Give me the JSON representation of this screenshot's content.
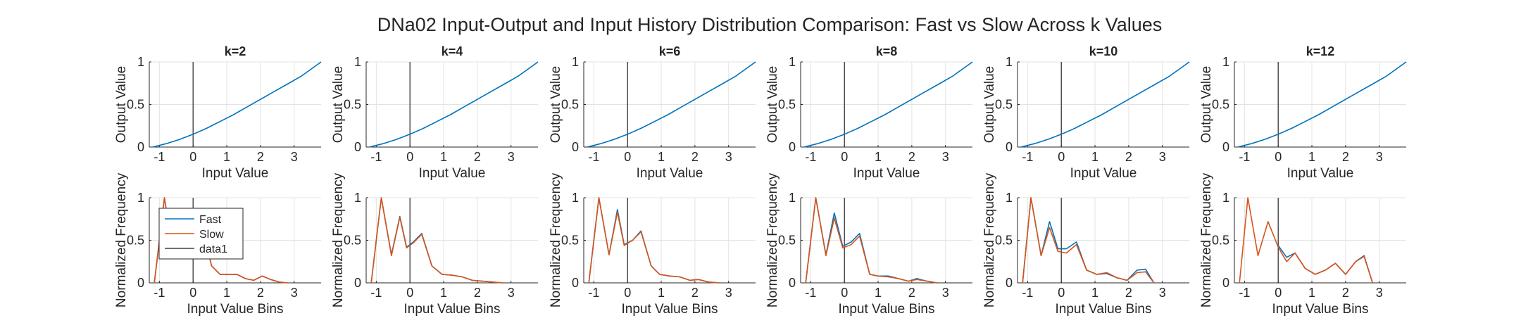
{
  "figure": {
    "title": "DNa02 Input-Output and Input History Distribution Comparison: Fast vs Slow Across k Values"
  },
  "colors": {
    "fast": "#0072BD",
    "slow": "#D95319",
    "data1": "#404040",
    "axis": "#262626",
    "grid": "#e3e3e3",
    "zero_line": "#262626"
  },
  "legend": {
    "entries": [
      "Fast",
      "Slow",
      "data1"
    ],
    "location": "northwest",
    "panel": 0
  },
  "chart_data": [
    {
      "type": "line",
      "title": "k=2",
      "xlabel": "Input Value",
      "ylabel": "Output Value",
      "xlim": [
        -1.3,
        3.8
      ],
      "ylim": [
        0,
        1
      ],
      "xticks": [
        -1,
        0,
        1,
        2,
        3
      ],
      "xtick_labels": [
        "-1",
        "0",
        "1",
        "2",
        "3"
      ],
      "yticks": [
        0,
        0.5,
        1
      ],
      "ytick_labels": [
        "0",
        "0.5",
        "1"
      ],
      "grid": true,
      "vline_x": 0,
      "series": [
        {
          "key": "fast",
          "x": [
            -1.2,
            -0.8,
            -0.4,
            0,
            0.4,
            0.8,
            1.2,
            1.6,
            2.0,
            2.4,
            2.8,
            3.2,
            3.8
          ],
          "values": [
            0.0,
            0.04,
            0.09,
            0.15,
            0.22,
            0.3,
            0.38,
            0.47,
            0.56,
            0.65,
            0.74,
            0.83,
            1.0
          ]
        }
      ]
    },
    {
      "type": "line",
      "title": "k=4",
      "xlabel": "Input Value",
      "ylabel": "Output Value",
      "xlim": [
        -1.3,
        3.8
      ],
      "ylim": [
        0,
        1
      ],
      "xticks": [
        -1,
        0,
        1,
        2,
        3
      ],
      "xtick_labels": [
        "-1",
        "0",
        "1",
        "2",
        "3"
      ],
      "yticks": [
        0,
        0.5,
        1
      ],
      "ytick_labels": [
        "0",
        "0.5",
        "1"
      ],
      "grid": true,
      "vline_x": 0,
      "series": [
        {
          "key": "fast",
          "x": [
            -1.2,
            -0.8,
            -0.4,
            0,
            0.4,
            0.8,
            1.2,
            1.6,
            2.0,
            2.4,
            2.8,
            3.2,
            3.8
          ],
          "values": [
            0.0,
            0.04,
            0.09,
            0.15,
            0.22,
            0.3,
            0.38,
            0.47,
            0.56,
            0.65,
            0.74,
            0.83,
            1.0
          ]
        }
      ]
    },
    {
      "type": "line",
      "title": "k=6",
      "xlabel": "Input Value",
      "ylabel": "Output Value",
      "xlim": [
        -1.3,
        3.8
      ],
      "ylim": [
        0,
        1
      ],
      "xticks": [
        -1,
        0,
        1,
        2,
        3
      ],
      "xtick_labels": [
        "-1",
        "0",
        "1",
        "2",
        "3"
      ],
      "yticks": [
        0,
        0.5,
        1
      ],
      "ytick_labels": [
        "0",
        "0.5",
        "1"
      ],
      "grid": true,
      "vline_x": 0,
      "series": [
        {
          "key": "fast",
          "x": [
            -1.2,
            -0.8,
            -0.4,
            0,
            0.4,
            0.8,
            1.2,
            1.6,
            2.0,
            2.4,
            2.8,
            3.2,
            3.8
          ],
          "values": [
            0.0,
            0.04,
            0.09,
            0.15,
            0.22,
            0.3,
            0.38,
            0.47,
            0.56,
            0.65,
            0.74,
            0.83,
            1.0
          ]
        }
      ]
    },
    {
      "type": "line",
      "title": "k=8",
      "xlabel": "Input Value",
      "ylabel": "Output Value",
      "xlim": [
        -1.3,
        3.8
      ],
      "ylim": [
        0,
        1
      ],
      "xticks": [
        -1,
        0,
        1,
        2,
        3
      ],
      "xtick_labels": [
        "-1",
        "0",
        "1",
        "2",
        "3"
      ],
      "yticks": [
        0,
        0.5,
        1
      ],
      "ytick_labels": [
        "0",
        "0.5",
        "1"
      ],
      "grid": true,
      "vline_x": 0,
      "series": [
        {
          "key": "fast",
          "x": [
            -1.2,
            -0.8,
            -0.4,
            0,
            0.4,
            0.8,
            1.2,
            1.6,
            2.0,
            2.4,
            2.8,
            3.2,
            3.8
          ],
          "values": [
            0.0,
            0.04,
            0.09,
            0.15,
            0.22,
            0.3,
            0.38,
            0.47,
            0.56,
            0.65,
            0.74,
            0.83,
            1.0
          ]
        }
      ]
    },
    {
      "type": "line",
      "title": "k=10",
      "xlabel": "Input Value",
      "ylabel": "Output Value",
      "xlim": [
        -1.3,
        3.8
      ],
      "ylim": [
        0,
        1
      ],
      "xticks": [
        -1,
        0,
        1,
        2,
        3
      ],
      "xtick_labels": [
        "-1",
        "0",
        "1",
        "2",
        "3"
      ],
      "yticks": [
        0,
        0.5,
        1
      ],
      "ytick_labels": [
        "0",
        "0.5",
        "1"
      ],
      "grid": true,
      "vline_x": 0,
      "series": [
        {
          "key": "fast",
          "x": [
            -1.2,
            -0.8,
            -0.4,
            0,
            0.4,
            0.8,
            1.2,
            1.6,
            2.0,
            2.4,
            2.8,
            3.2,
            3.8
          ],
          "values": [
            0.0,
            0.04,
            0.09,
            0.15,
            0.22,
            0.3,
            0.38,
            0.47,
            0.56,
            0.65,
            0.74,
            0.83,
            1.0
          ]
        }
      ]
    },
    {
      "type": "line",
      "title": "k=12",
      "xlabel": "Input Value",
      "ylabel": "Output Value",
      "xlim": [
        -1.3,
        3.8
      ],
      "ylim": [
        0,
        1
      ],
      "xticks": [
        -1,
        0,
        1,
        2,
        3
      ],
      "xtick_labels": [
        "-1",
        "0",
        "1",
        "2",
        "3"
      ],
      "yticks": [
        0,
        0.5,
        1
      ],
      "ytick_labels": [
        "0",
        "0.5",
        "1"
      ],
      "grid": true,
      "vline_x": 0,
      "series": [
        {
          "key": "fast",
          "x": [
            -1.2,
            -0.8,
            -0.4,
            0,
            0.4,
            0.8,
            1.2,
            1.6,
            2.0,
            2.4,
            2.8,
            3.2,
            3.8
          ],
          "values": [
            0.0,
            0.04,
            0.09,
            0.15,
            0.22,
            0.3,
            0.38,
            0.47,
            0.56,
            0.65,
            0.74,
            0.83,
            1.0
          ]
        }
      ]
    },
    {
      "type": "line",
      "title": "",
      "xlabel": "Input Value Bins",
      "ylabel": "Normalized Frequency",
      "xlim": [
        -1.3,
        3.8
      ],
      "ylim": [
        0,
        1
      ],
      "xticks": [
        -1,
        0,
        1,
        2,
        3
      ],
      "xtick_labels": [
        "-1",
        "0",
        "1",
        "2",
        "3"
      ],
      "yticks": [
        0,
        0.5,
        1
      ],
      "ytick_labels": [
        "0",
        "0.5",
        "1"
      ],
      "grid": true,
      "vline_x": 0,
      "series": [
        {
          "key": "fast",
          "x": [
            -1.15,
            -0.85,
            -0.6,
            -0.35,
            -0.15,
            0.05,
            0.3,
            0.55,
            0.8,
            1.05,
            1.3,
            1.55,
            1.8,
            2.05,
            2.3,
            2.55,
            2.8
          ],
          "values": [
            0.0,
            1.0,
            0.35,
            0.8,
            0.43,
            0.52,
            0.6,
            0.2,
            0.1,
            0.1,
            0.1,
            0.05,
            0.03,
            0.08,
            0.04,
            0.01,
            0.0
          ]
        },
        {
          "key": "slow",
          "x": [
            -1.15,
            -0.85,
            -0.6,
            -0.35,
            -0.15,
            0.05,
            0.3,
            0.55,
            0.8,
            1.05,
            1.3,
            1.55,
            1.8,
            2.05,
            2.3,
            2.55,
            2.8
          ],
          "values": [
            0.0,
            1.0,
            0.35,
            0.8,
            0.43,
            0.52,
            0.6,
            0.2,
            0.1,
            0.1,
            0.1,
            0.05,
            0.03,
            0.08,
            0.04,
            0.01,
            0.0
          ]
        }
      ]
    },
    {
      "type": "line",
      "title": "",
      "xlabel": "Input Value Bins",
      "ylabel": "Normalized Frequency",
      "xlim": [
        -1.3,
        3.8
      ],
      "ylim": [
        0,
        1
      ],
      "xticks": [
        -1,
        0,
        1,
        2,
        3
      ],
      "xtick_labels": [
        "-1",
        "0",
        "1",
        "2",
        "3"
      ],
      "yticks": [
        0,
        0.5,
        1
      ],
      "ytick_labels": [
        "0",
        "0.5",
        "1"
      ],
      "grid": true,
      "vline_x": 0,
      "series": [
        {
          "key": "fast",
          "x": [
            -1.15,
            -0.85,
            -0.55,
            -0.3,
            -0.1,
            0.1,
            0.35,
            0.65,
            0.95,
            1.25,
            1.55,
            1.85,
            2.15,
            2.45,
            2.75
          ],
          "values": [
            0.0,
            1.0,
            0.33,
            0.78,
            0.42,
            0.48,
            0.58,
            0.2,
            0.1,
            0.09,
            0.07,
            0.03,
            0.02,
            0.01,
            0.0
          ]
        },
        {
          "key": "slow",
          "x": [
            -1.15,
            -0.85,
            -0.55,
            -0.3,
            -0.1,
            0.1,
            0.35,
            0.65,
            0.95,
            1.25,
            1.55,
            1.85,
            2.15,
            2.45,
            2.75
          ],
          "values": [
            0.0,
            1.0,
            0.32,
            0.77,
            0.41,
            0.47,
            0.57,
            0.2,
            0.1,
            0.09,
            0.07,
            0.03,
            0.02,
            0.01,
            0.0
          ]
        }
      ]
    },
    {
      "type": "line",
      "title": "",
      "xlabel": "Input Value Bins",
      "ylabel": "Normalized Frequency",
      "xlim": [
        -1.3,
        3.8
      ],
      "ylim": [
        0,
        1
      ],
      "xticks": [
        -1,
        0,
        1,
        2,
        3
      ],
      "xtick_labels": [
        "-1",
        "0",
        "1",
        "2",
        "3"
      ],
      "yticks": [
        0,
        0.5,
        1
      ],
      "ytick_labels": [
        "0",
        "0.5",
        "1"
      ],
      "grid": true,
      "vline_x": 0,
      "series": [
        {
          "key": "fast",
          "x": [
            -1.15,
            -0.85,
            -0.55,
            -0.3,
            -0.1,
            0.15,
            0.4,
            0.7,
            0.95,
            1.25,
            1.55,
            1.85,
            2.1,
            2.4,
            2.7
          ],
          "values": [
            0.0,
            1.0,
            0.33,
            0.86,
            0.45,
            0.5,
            0.61,
            0.2,
            0.1,
            0.08,
            0.07,
            0.03,
            0.04,
            0.01,
            0.0
          ]
        },
        {
          "key": "slow",
          "x": [
            -1.15,
            -0.85,
            -0.55,
            -0.3,
            -0.1,
            0.15,
            0.4,
            0.7,
            0.95,
            1.25,
            1.55,
            1.85,
            2.1,
            2.4,
            2.7
          ],
          "values": [
            0.0,
            1.0,
            0.33,
            0.83,
            0.44,
            0.5,
            0.6,
            0.2,
            0.1,
            0.08,
            0.07,
            0.03,
            0.04,
            0.01,
            0.0
          ]
        }
      ]
    },
    {
      "type": "line",
      "title": "",
      "xlabel": "Input Value Bins",
      "ylabel": "Normalized Frequency",
      "xlim": [
        -1.3,
        3.8
      ],
      "ylim": [
        0,
        1
      ],
      "xticks": [
        -1,
        0,
        1,
        2,
        3
      ],
      "xtick_labels": [
        "-1",
        "0",
        "1",
        "2",
        "3"
      ],
      "yticks": [
        0,
        0.5,
        1
      ],
      "ytick_labels": [
        "0",
        "0.5",
        "1"
      ],
      "grid": true,
      "vline_x": 0,
      "series": [
        {
          "key": "fast",
          "x": [
            -1.15,
            -0.85,
            -0.55,
            -0.3,
            -0.05,
            0.2,
            0.45,
            0.75,
            1.0,
            1.3,
            1.6,
            1.9,
            2.15,
            2.45,
            2.75
          ],
          "values": [
            0.0,
            1.0,
            0.33,
            0.82,
            0.43,
            0.48,
            0.58,
            0.1,
            0.08,
            0.08,
            0.05,
            0.02,
            0.05,
            0.02,
            0.0
          ]
        },
        {
          "key": "slow",
          "x": [
            -1.15,
            -0.85,
            -0.55,
            -0.3,
            -0.05,
            0.2,
            0.45,
            0.75,
            1.0,
            1.3,
            1.6,
            1.9,
            2.15,
            2.45,
            2.75
          ],
          "values": [
            0.0,
            1.0,
            0.32,
            0.76,
            0.41,
            0.45,
            0.55,
            0.1,
            0.08,
            0.07,
            0.05,
            0.02,
            0.04,
            0.02,
            0.0
          ]
        }
      ]
    },
    {
      "type": "line",
      "title": "",
      "xlabel": "Input Value Bins",
      "ylabel": "Normalized Frequency",
      "xlim": [
        -1.3,
        3.8
      ],
      "ylim": [
        0,
        1
      ],
      "xticks": [
        -1,
        0,
        1,
        2,
        3
      ],
      "xtick_labels": [
        "-1",
        "0",
        "1",
        "2",
        "3"
      ],
      "yticks": [
        0,
        0.5,
        1
      ],
      "ytick_labels": [
        "0",
        "0.5",
        "1"
      ],
      "grid": true,
      "vline_x": 0,
      "series": [
        {
          "key": "fast",
          "x": [
            -1.15,
            -0.9,
            -0.6,
            -0.35,
            -0.1,
            0.15,
            0.45,
            0.75,
            1.05,
            1.35,
            1.65,
            1.95,
            2.25,
            2.5,
            2.75
          ],
          "values": [
            0.0,
            1.0,
            0.32,
            0.72,
            0.4,
            0.4,
            0.48,
            0.15,
            0.1,
            0.11,
            0.06,
            0.03,
            0.15,
            0.16,
            0.0
          ]
        },
        {
          "key": "slow",
          "x": [
            -1.15,
            -0.9,
            -0.6,
            -0.35,
            -0.1,
            0.15,
            0.45,
            0.75,
            1.05,
            1.35,
            1.65,
            1.95,
            2.25,
            2.5,
            2.75
          ],
          "values": [
            0.0,
            1.0,
            0.32,
            0.65,
            0.37,
            0.35,
            0.45,
            0.15,
            0.1,
            0.12,
            0.06,
            0.03,
            0.12,
            0.13,
            0.0
          ]
        }
      ]
    },
    {
      "type": "line",
      "title": "",
      "xlabel": "Input Value Bins",
      "ylabel": "Normalized Frequency",
      "xlim": [
        -1.3,
        3.8
      ],
      "ylim": [
        0,
        1
      ],
      "xticks": [
        -1,
        0,
        1,
        2,
        3
      ],
      "xtick_labels": [
        "-1",
        "0",
        "1",
        "2",
        "3"
      ],
      "yticks": [
        0,
        0.5,
        1
      ],
      "ytick_labels": [
        "0",
        "0.5",
        "1"
      ],
      "grid": true,
      "vline_x": 0,
      "series": [
        {
          "key": "fast",
          "x": [
            0.0,
            0.25,
            0.5,
            0.8,
            1.1,
            1.4,
            1.7,
            2.0,
            2.3,
            2.55,
            2.8
          ],
          "values": [
            0.44,
            0.3,
            0.35,
            0.17,
            0.1,
            0.15,
            0.23,
            0.1,
            0.25,
            0.32,
            0.0
          ]
        },
        {
          "key": "slow",
          "x": [
            -1.15,
            -0.9,
            -0.6,
            -0.3,
            0.0,
            0.25,
            0.5,
            0.8,
            1.1,
            1.4,
            1.7,
            2.0,
            2.3,
            2.55,
            2.8
          ],
          "values": [
            0.0,
            1.0,
            0.32,
            0.72,
            0.42,
            0.25,
            0.35,
            0.17,
            0.1,
            0.15,
            0.23,
            0.1,
            0.25,
            0.31,
            0.0
          ]
        }
      ]
    }
  ]
}
